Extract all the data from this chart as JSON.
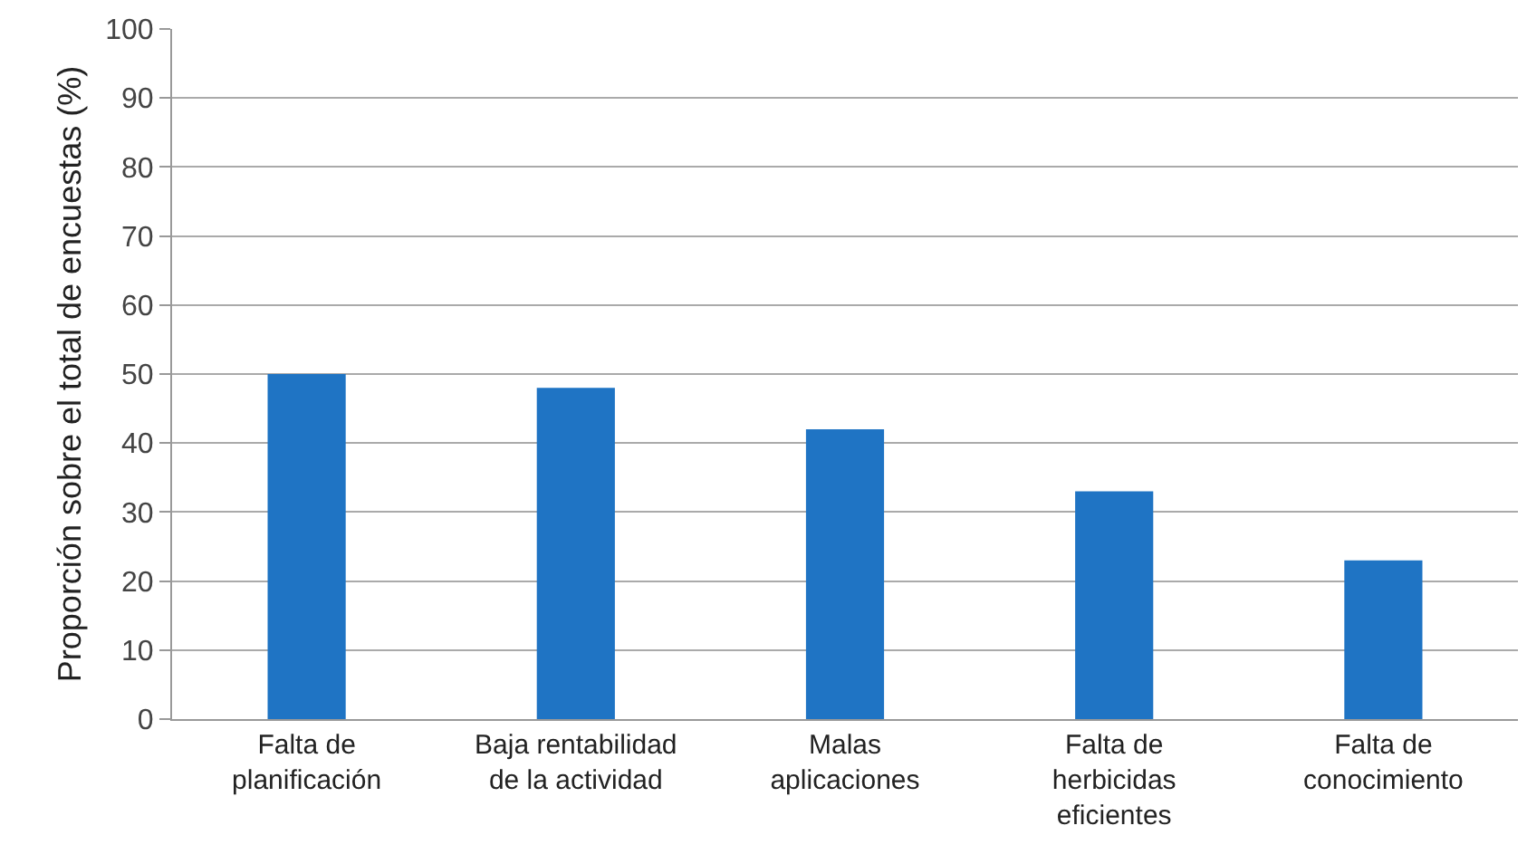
{
  "chart_data": {
    "type": "bar",
    "ylabel": "Proporción sobre el total de encuestas (%)",
    "categories": [
      "Falta de\nplanificación",
      "Baja rentabilidad\nde la actividad",
      "Malas\naplicaciones",
      "Falta de\nherbicidas\neficientes",
      "Falta de\nconocimiento"
    ],
    "values": [
      50,
      48,
      42,
      33,
      23
    ],
    "color": "#1f74c4",
    "ylim": [
      0,
      100
    ],
    "yticks": [
      0,
      10,
      20,
      30,
      40,
      50,
      60,
      70,
      80,
      90,
      100
    ],
    "grid": "y",
    "legend": false
  }
}
